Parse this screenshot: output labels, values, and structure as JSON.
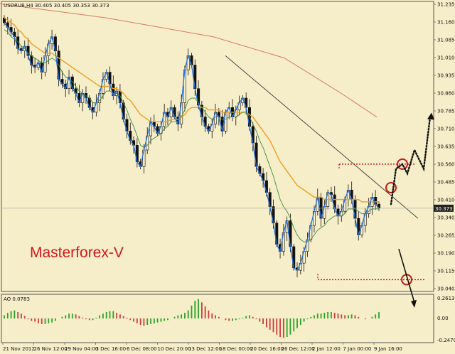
{
  "chart_data": [
    {
      "type": "candlestick",
      "symbol_header": "USDRUB,H4  30.405 30.405 30.353 30.373",
      "brand": "Masterforex-V",
      "current_price_label": "30.373",
      "current_price": 30.373,
      "ylim": [
        30.02,
        31.25
      ],
      "y_ticks": [
        "31.235",
        "31.160",
        "31.085",
        "31.010",
        "30.935",
        "30.860",
        "30.785",
        "30.710",
        "30.635",
        "30.560",
        "30.485",
        "30.410",
        "30.340",
        "30.265",
        "30.190",
        "30.115",
        "30.040"
      ],
      "x_ticks": [
        "21 Nov 2012",
        "26 Nov 12:00",
        "29 Nov 04:00",
        "3 Dec 16:00",
        "6 Dec 08:00",
        "10 Dec 20:00",
        "13 Dec 12:00",
        "18 Dec 00:00",
        "20 Dec 16:00",
        "26 Dec 12:00",
        "2 Jan 12:00",
        "7 Jan 00:00",
        "9 Jan 16:00"
      ],
      "close_path": [
        31.16,
        31.14,
        31.12,
        31.1,
        31.05,
        31.04,
        31.06,
        31.02,
        30.98,
        30.97,
        30.99,
        30.95,
        31.02,
        31.07,
        31.1,
        31.04,
        30.92,
        30.9,
        30.88,
        30.93,
        30.88,
        30.86,
        30.82,
        30.86,
        30.84,
        30.8,
        30.78,
        30.82,
        30.86,
        30.92,
        30.95,
        30.9,
        30.85,
        30.87,
        30.82,
        30.75,
        30.7,
        30.66,
        30.64,
        30.57,
        30.55,
        30.62,
        30.68,
        30.74,
        30.72,
        30.69,
        30.72,
        30.78,
        30.76,
        30.8,
        30.76,
        30.73,
        30.82,
        30.96,
        31.02,
        30.98,
        30.88,
        30.81,
        30.76,
        30.72,
        30.7,
        30.73,
        30.78,
        30.76,
        30.7,
        30.78,
        30.8,
        30.76,
        30.79,
        30.82,
        30.84,
        30.8,
        30.72,
        30.65,
        30.55,
        30.52,
        30.49,
        30.44,
        30.38,
        30.31,
        30.22,
        30.19,
        30.27,
        30.32,
        30.21,
        30.12,
        30.11,
        30.14,
        30.19,
        30.24,
        30.3,
        30.36,
        30.42,
        30.33,
        30.38,
        30.44,
        30.43,
        30.37,
        30.34,
        30.36,
        30.41,
        30.45,
        30.41,
        30.33,
        30.26,
        30.3,
        30.35,
        30.38,
        30.42,
        30.39,
        30.373
      ],
      "ma_green": [
        31.13,
        31.12,
        31.1,
        31.09,
        31.08,
        31.06,
        31.05,
        31.03,
        31.02,
        31.01,
        31.0,
        30.99,
        30.99,
        31.0,
        31.01,
        31.0,
        30.98,
        30.95,
        30.93,
        30.92,
        30.91,
        30.89,
        30.87,
        30.86,
        30.85,
        30.84,
        30.82,
        30.82,
        30.83,
        30.85,
        30.87,
        30.87,
        30.86,
        30.86,
        30.85,
        30.82,
        30.79,
        30.75,
        30.72,
        30.68,
        30.64,
        30.63,
        30.64,
        30.66,
        30.67,
        30.68,
        30.69,
        30.71,
        30.72,
        30.74,
        30.74,
        30.74,
        30.76,
        30.79,
        30.83,
        30.84,
        30.84,
        30.82,
        30.8,
        30.78,
        30.76,
        30.75,
        30.76,
        30.76,
        30.75,
        30.75,
        30.76,
        30.76,
        30.76,
        30.77,
        30.78,
        30.78,
        30.76,
        30.73,
        30.7,
        30.66,
        30.63,
        30.59,
        30.55,
        30.51,
        30.46,
        30.41,
        30.38,
        30.36,
        30.33,
        30.29,
        30.26,
        30.24,
        30.23,
        30.23,
        30.24,
        30.26,
        30.28,
        30.29,
        30.3,
        30.32,
        30.33,
        30.34,
        30.34,
        30.34,
        30.35,
        30.37,
        30.37,
        30.37,
        30.36,
        30.35,
        30.35,
        30.36,
        30.37,
        30.37,
        30.37
      ],
      "ma_orange": [
        31.18,
        31.17,
        31.16,
        31.15,
        31.13,
        31.12,
        31.1,
        31.09,
        31.07,
        31.06,
        31.05,
        31.04,
        31.03,
        31.03,
        31.03,
        31.02,
        31.01,
        31.0,
        30.99,
        30.98,
        30.97,
        30.96,
        30.95,
        30.94,
        30.93,
        30.92,
        30.91,
        30.9,
        30.89,
        30.89,
        30.89,
        30.89,
        30.88,
        30.88,
        30.87,
        30.86,
        30.84,
        30.83,
        30.81,
        30.79,
        30.77,
        30.76,
        30.75,
        30.74,
        30.74,
        30.74,
        30.74,
        30.74,
        30.74,
        30.75,
        30.75,
        30.75,
        30.76,
        30.77,
        30.79,
        30.8,
        30.8,
        30.8,
        30.8,
        30.8,
        30.79,
        30.79,
        30.79,
        30.79,
        30.78,
        30.78,
        30.78,
        30.78,
        30.78,
        30.78,
        30.78,
        30.78,
        30.77,
        30.76,
        30.74,
        30.72,
        30.7,
        30.68,
        30.66,
        30.63,
        30.6,
        30.57,
        30.55,
        30.53,
        30.51,
        30.49,
        30.47,
        30.46,
        30.45,
        30.44,
        30.43,
        30.42,
        30.42,
        30.42,
        30.41,
        30.41,
        30.41,
        30.41,
        30.41,
        30.41,
        30.41,
        30.41,
        30.41,
        30.41,
        30.41,
        30.4,
        30.4,
        30.4,
        30.4,
        30.4,
        30.4
      ],
      "ma_red": [
        [
          0,
          31.24
        ],
        [
          150,
          31.18
        ],
        [
          300,
          31.1
        ],
        [
          400,
          31.01
        ],
        [
          480,
          30.86
        ],
        [
          530,
          30.76
        ]
      ],
      "trendline": [
        [
          317,
          31.02
        ],
        [
          588,
          30.33
        ]
      ],
      "level_upper": 30.56,
      "level_lower": 30.07,
      "markers": [
        [
          550,
          30.46
        ],
        [
          566,
          30.56
        ],
        [
          572,
          30.07
        ]
      ],
      "arrow_up": [
        [
          550,
          30.39
        ],
        [
          557,
          30.54
        ],
        [
          566,
          30.56
        ],
        [
          573,
          30.52
        ],
        [
          583,
          30.62
        ],
        [
          596,
          30.54
        ],
        [
          605,
          30.76
        ]
      ],
      "arrow_down": [
        [
          561,
          30.2
        ],
        [
          583,
          29.96
        ]
      ]
    },
    {
      "type": "bar",
      "label": "AO 0.0783",
      "y_ticks": [
        "0.2613",
        "0.00",
        "-0.2470"
      ],
      "ylim": [
        -0.3,
        0.3
      ],
      "values": [
        0.04,
        0.07,
        0.09,
        0.1,
        0.08,
        0.06,
        0.03,
        -0.01,
        -0.03,
        -0.04,
        -0.06,
        -0.07,
        -0.07,
        -0.06,
        -0.05,
        -0.03,
        0.0,
        0.02,
        0.04,
        0.06,
        0.06,
        0.05,
        0.03,
        0.01,
        -0.01,
        -0.02,
        -0.02,
        0.01,
        0.04,
        0.06,
        0.08,
        0.09,
        0.09,
        0.07,
        0.05,
        0.03,
        0.01,
        -0.02,
        -0.04,
        -0.06,
        -0.08,
        -0.09,
        -0.08,
        -0.07,
        -0.06,
        -0.05,
        -0.04,
        -0.03,
        -0.02,
        0.0,
        0.02,
        0.04,
        0.05,
        0.07,
        0.1,
        0.16,
        0.22,
        0.24,
        0.2,
        0.15,
        0.1,
        0.06,
        0.04,
        0.02,
        0.0,
        -0.02,
        -0.03,
        -0.03,
        -0.02,
        -0.01,
        0.01,
        0.03,
        0.04,
        0.02,
        -0.01,
        -0.04,
        -0.07,
        -0.11,
        -0.14,
        -0.17,
        -0.2,
        -0.23,
        -0.24,
        -0.23,
        -0.2,
        -0.16,
        -0.12,
        -0.08,
        -0.04,
        -0.01,
        0.02,
        0.04,
        0.06,
        0.06,
        0.07,
        0.08,
        0.08,
        0.07,
        0.06,
        0.05,
        0.04,
        0.04,
        0.05,
        0.04,
        0.02,
        0.0,
        -0.01,
        0.0,
        0.02,
        0.05,
        0.0783
      ]
    }
  ]
}
